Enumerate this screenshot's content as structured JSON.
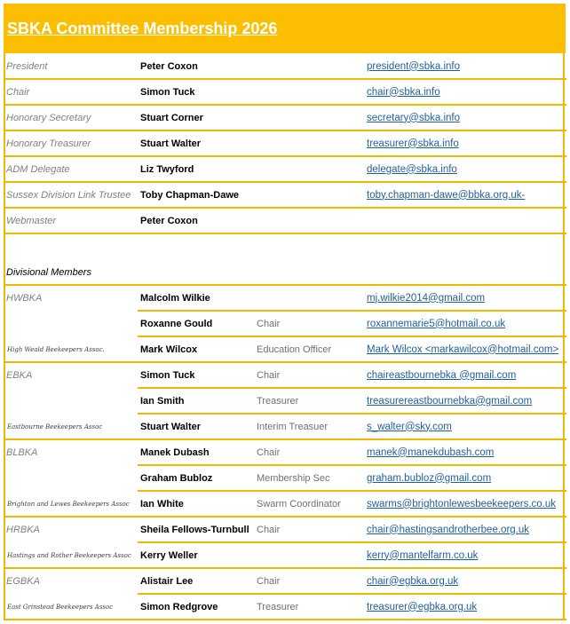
{
  "header": {
    "title": "SBKA Committee Membership 2026"
  },
  "committee": {
    "rows": [
      {
        "role": "President",
        "name": "Peter Coxon",
        "email": "president@sbka.info"
      },
      {
        "role": "Chair",
        "name": "Simon Tuck",
        "email": "chair@sbka.info"
      },
      {
        "role": "Honorary Secretary",
        "name": "Stuart Corner",
        "email": "secretary@sbka.info"
      },
      {
        "role": "Honorary  Treasurer",
        "name": "Stuart Walter",
        "email": "treasurer@sbka.info"
      },
      {
        "role": "ADM Delegate",
        "name": "Liz Twyford",
        "email": "delegate@sbka.info"
      },
      {
        "role": "Sussex Division Link Trustee",
        "name": "Toby Chapman-Dawe",
        "email": "toby.chapman-dawe@bbka.org.uk-"
      },
      {
        "role": "Webmaster",
        "name": "Peter Coxon"
      }
    ]
  },
  "divisional": {
    "heading": "Divisional Members",
    "groups": [
      {
        "code": "HWBKA",
        "full_name": "High Weald Beekeepers Assoc.",
        "members": [
          {
            "name": "Malcolm Wilkie",
            "email": "mj.wilkie2014@gmail.com"
          },
          {
            "name": "Roxanne Gould",
            "position": "Chair",
            "email": "roxannemarie5@hotmail.co.uk"
          },
          {
            "name": "Mark Wilcox",
            "position": "Education Officer",
            "email": "Mark Wilcox <markawilcox@hotmail.com>"
          }
        ]
      },
      {
        "code": "EBKA",
        "full_name": "Eastbourne Beekeepers Assoc",
        "members": [
          {
            "name": "Simon Tuck",
            "position": "Chair",
            "email": "chaireastbournebka @gmail.com"
          },
          {
            "name": "Ian Smith",
            "position": "Treasurer",
            "email": "treasurereastbournebka@gmail.com"
          },
          {
            "name": "Stuart Walter",
            "position": "Interim Treasuer",
            "email": "s_walter@sky.com"
          }
        ]
      },
      {
        "code": "BLBKA",
        "full_name": "Brighton and Lewes Beekeepers Assoc",
        "members": [
          {
            "name": "Manek Dubash",
            "position": "Chair",
            "email": "manek@manekdubash.com"
          },
          {
            "name": "Graham Bubloz",
            "position": "Membership Sec",
            "email": "graham.bubloz@gmail.com"
          },
          {
            "name": "Ian White",
            "position": "Swarm Coordinator",
            "email": "swarms@brightonlewesbeekeepers.co.uk"
          }
        ]
      },
      {
        "code": "HRBKA",
        "full_name": "Hastings and Rother Beekeepers Assoc",
        "members": [
          {
            "name": "Sheila Fellows-Turnbull",
            "position": "Chair",
            "email": "chair@hastingsandrotherbee.org.uk"
          },
          {
            "name": "Kerry Weller",
            "email": "kerry@mantelfarm.co.uk"
          }
        ]
      },
      {
        "code": "EGBKA",
        "full_name": "East Grinstead Beekeepers Assoc",
        "members": [
          {
            "name": "Alistair Lee",
            "position": "Chair",
            "email": "chair@egbka.org.uk"
          },
          {
            "name": "Simon Redgrove",
            "position": "Treasurer",
            "email": "treasurer@egbka.org.uk"
          }
        ]
      }
    ]
  }
}
